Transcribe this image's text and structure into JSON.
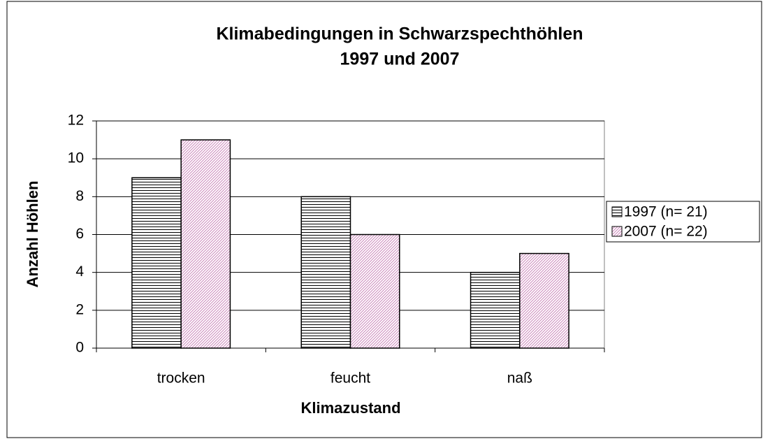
{
  "chart_data": {
    "type": "bar",
    "title": [
      "Klimabedingungen in Schwarzspechthöhlen",
      "1997 und 2007"
    ],
    "x_label": "Klimazustand",
    "y_label": "Anzahl Höhlen",
    "categories": [
      "trocken",
      "feucht",
      "naß"
    ],
    "series": [
      {
        "name": "1997 (n= 21)",
        "color": "#000000",
        "pattern": "horizontal",
        "values": [
          9,
          8,
          4
        ]
      },
      {
        "name": "2007 (n= 22)",
        "color": "#cc88bb",
        "pattern": "diagonal",
        "values": [
          11,
          6,
          5
        ]
      }
    ],
    "ylim": [
      0,
      12
    ],
    "yticks": [
      0,
      2,
      4,
      6,
      8,
      10,
      12
    ],
    "grid": true,
    "legend": "right"
  }
}
